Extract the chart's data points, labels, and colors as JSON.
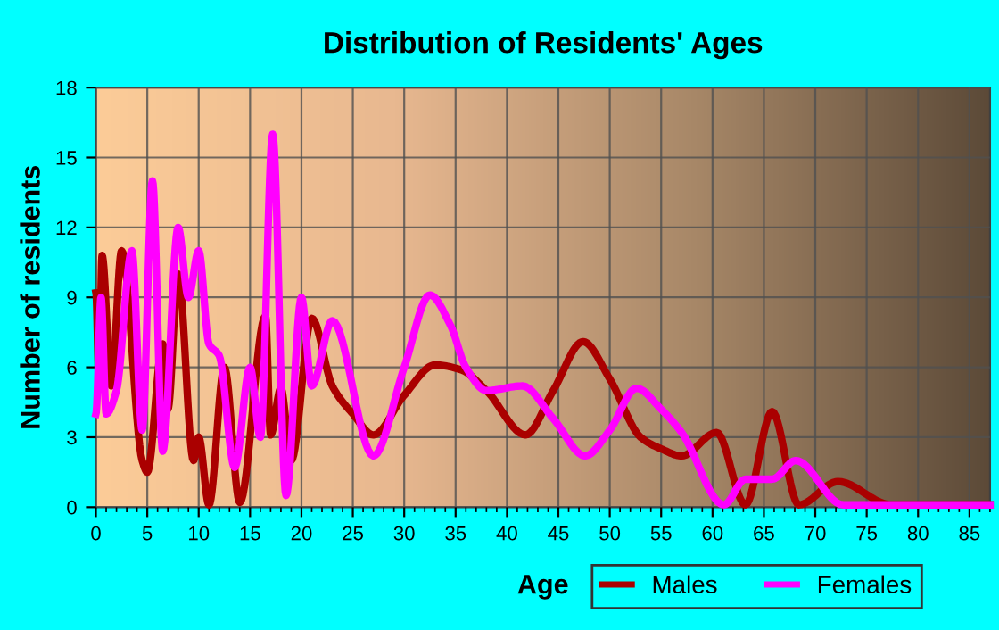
{
  "chart_data": {
    "type": "line",
    "title": "Distribution of Residents' Ages",
    "xlabel": "Age",
    "ylabel": "Number of residents",
    "xlim": [
      0,
      87
    ],
    "xticks": [
      0,
      5,
      10,
      15,
      20,
      25,
      30,
      35,
      40,
      45,
      50,
      55,
      60,
      65,
      70,
      75,
      80,
      85
    ],
    "ylim": [
      0,
      18
    ],
    "yticks": [
      0,
      3,
      6,
      9,
      12,
      15,
      18
    ],
    "grid": true,
    "legend": "bottom right",
    "marker": "none",
    "line_style": "solid",
    "series": [
      {
        "name": "Males",
        "color": "#aa0000",
        "x": [
          0,
          0.3,
          0.6,
          1.5,
          2.5,
          4.5,
          5,
          6.5,
          7,
          8,
          9.5,
          10,
          11,
          12.5,
          14,
          16.5,
          17,
          18,
          19,
          21,
          23,
          25,
          27,
          30,
          33,
          35.5,
          38,
          41.8,
          44.5,
          47.4,
          50,
          53,
          55,
          57,
          60.4,
          63.2,
          65.8,
          68.4,
          72.2,
          77.4,
          87
        ],
        "values": [
          9.2,
          5.3,
          10.8,
          5.2,
          11,
          2,
          1.5,
          7,
          4.2,
          10,
          2,
          3,
          0.1,
          6,
          0.2,
          8.2,
          3.1,
          5.1,
          2,
          8.1,
          5.2,
          4,
          3.1,
          4.8,
          6.1,
          5.9,
          5,
          3.1,
          5,
          7.1,
          5.5,
          3,
          2.5,
          2.2,
          3.2,
          0.1,
          4.1,
          0.1,
          1.1,
          0.1,
          0.1
        ]
      },
      {
        "name": "Females",
        "color": "#ff00ff",
        "x": [
          0,
          0.5,
          1,
          2,
          3.5,
          4.5,
          5.5,
          6.5,
          8,
          9,
          10,
          11,
          12,
          13.5,
          15,
          16,
          17.2,
          18.5,
          20,
          21,
          23,
          27,
          30,
          32.5,
          34.5,
          36,
          38,
          41.5,
          44.5,
          47.6,
          50,
          52.6,
          55,
          57,
          61.1,
          63.2,
          65.8,
          68.1,
          72.7,
          87
        ],
        "values": [
          4,
          9,
          4,
          5,
          11,
          3.3,
          14,
          2.4,
          12,
          9,
          11,
          7,
          6.5,
          1.7,
          6,
          3,
          16,
          0.5,
          9,
          5.2,
          8,
          2.2,
          6,
          9.1,
          7.8,
          6,
          5,
          5.2,
          3.8,
          2.2,
          3.3,
          5.1,
          4.2,
          3.2,
          0.1,
          1.2,
          1.2,
          2,
          0.1,
          0.1
        ]
      }
    ]
  }
}
